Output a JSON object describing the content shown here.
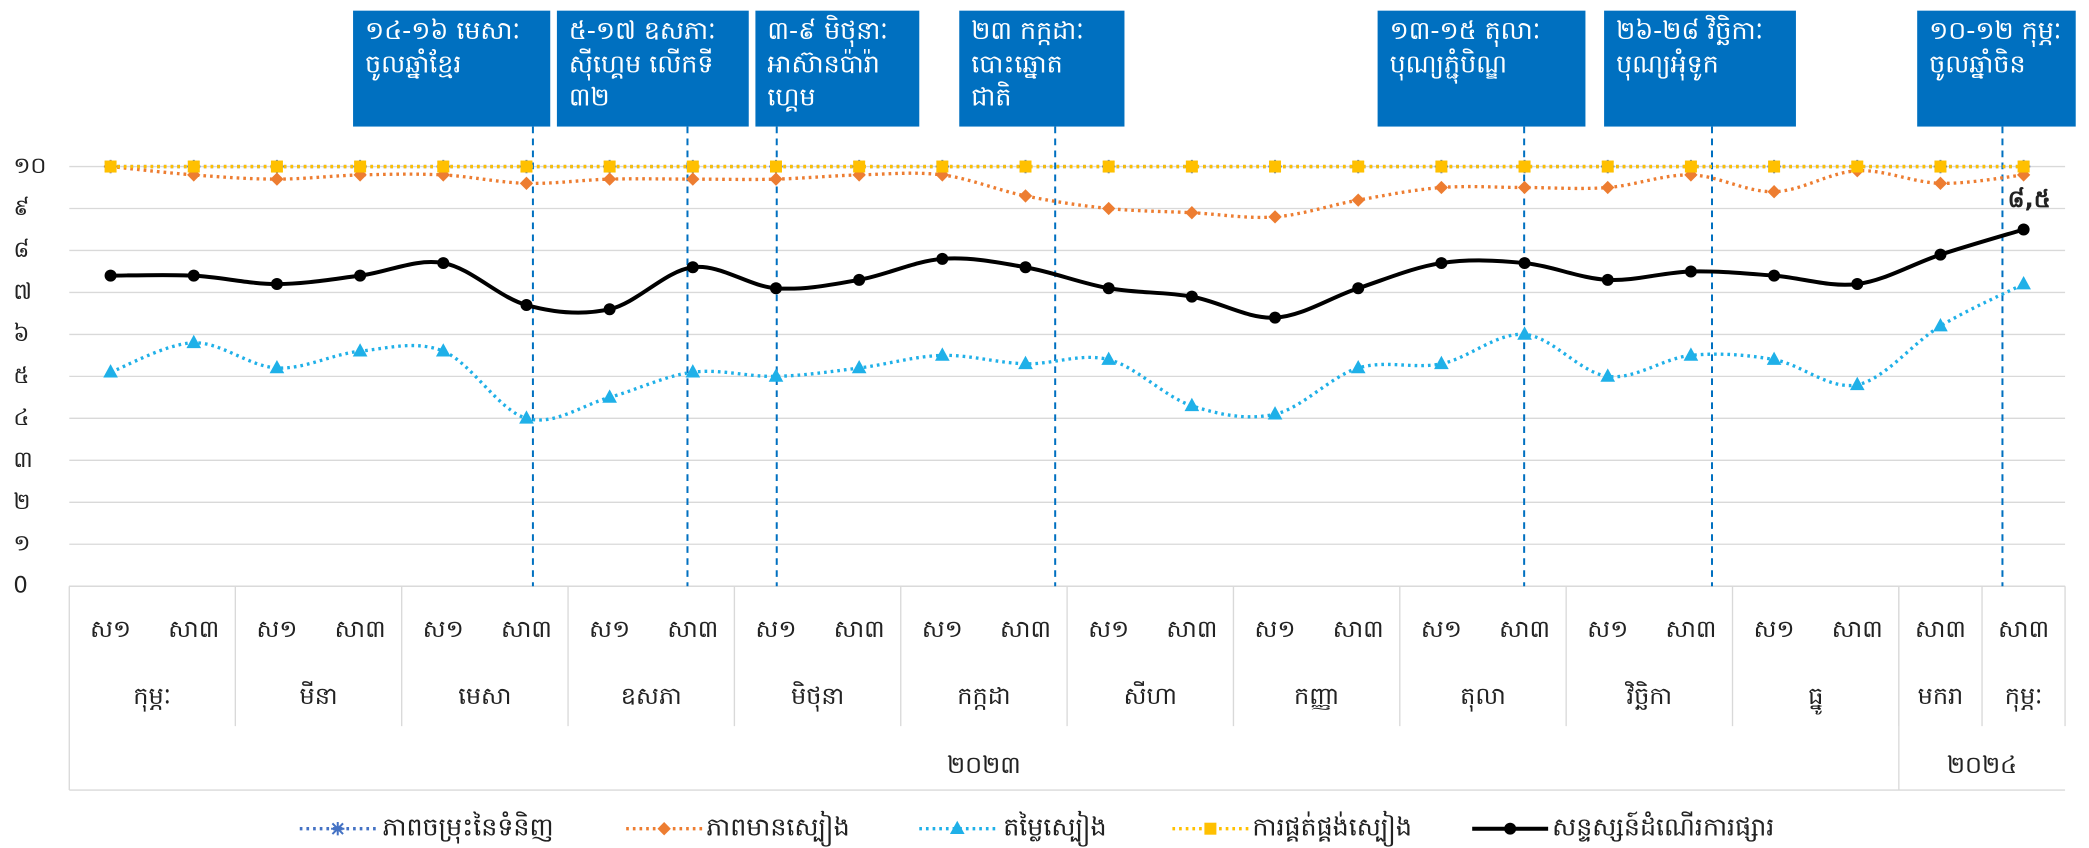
{
  "chart_data": {
    "type": "line",
    "categories": [
      "ស១",
      "សា៣",
      "ស១",
      "សា៣",
      "ស១",
      "សា៣",
      "ស១",
      "សា៣",
      "ស១",
      "សា៣",
      "ស១",
      "សា៣",
      "ស១",
      "សា៣",
      "ស១",
      "សា៣",
      "ស១",
      "សា៣",
      "ស១",
      "សា៣",
      "ស១",
      "សា៣",
      "សា៣",
      "សា៣"
    ],
    "month_labels": [
      "កុម្ភៈ",
      null,
      "មីនា",
      null,
      "មេសា",
      null,
      "ឧសភា",
      null,
      "មិថុនា",
      null,
      "កក្កដា",
      null,
      "សីហា",
      null,
      "កញ្ញា",
      null,
      "តុលា",
      null,
      "វិច្ឆិកា",
      null,
      "ធ្នូ",
      null,
      "មករា",
      "កុម្ភៈ"
    ],
    "year_labels": [
      "២០២៣",
      null,
      null,
      null,
      null,
      null,
      null,
      null,
      null,
      null,
      null,
      null,
      null,
      null,
      null,
      null,
      null,
      null,
      null,
      null,
      null,
      null,
      "២០២៤",
      null
    ],
    "ylim": [
      0,
      10
    ],
    "yticks": [
      0,
      {
        "value": 1,
        "label": "១"
      },
      {
        "value": 2,
        "label": "២"
      },
      {
        "value": 3,
        "label": "៣"
      },
      {
        "value": 4,
        "label": "៤"
      },
      {
        "value": 5,
        "label": "៥"
      },
      {
        "value": 6,
        "label": "៦"
      },
      {
        "value": 7,
        "label": "៧"
      },
      {
        "value": 8,
        "label": "៨"
      },
      {
        "value": 9,
        "label": "៩"
      },
      {
        "value": 10,
        "label": "១០"
      }
    ],
    "grid": true,
    "legend": "bottom",
    "series": [
      {
        "name": "ភាពចម្រុះនៃទំនិញ",
        "color": "#4472c4",
        "marker": "star",
        "dash": "dotted",
        "values": [
          10,
          10,
          10,
          10,
          10,
          10,
          10,
          10,
          10,
          10,
          10,
          10,
          10,
          10,
          10,
          10,
          10,
          10,
          10,
          10,
          10,
          10,
          10,
          10
        ]
      },
      {
        "name": "ភាពមានស្បៀង",
        "color": "#ed7d31",
        "marker": "diamond",
        "dash": "dotted",
        "values": [
          10.0,
          9.8,
          9.7,
          9.8,
          9.8,
          9.6,
          9.7,
          9.7,
          9.7,
          9.8,
          9.8,
          9.3,
          9.0,
          8.9,
          8.8,
          9.2,
          9.5,
          9.5,
          9.5,
          9.8,
          9.4,
          9.9,
          9.6,
          9.8
        ]
      },
      {
        "name": "តម្លៃស្បៀង",
        "color": "#1fb0e8",
        "marker": "triangle",
        "dash": "dotted",
        "values": [
          5.1,
          5.8,
          5.2,
          5.6,
          5.6,
          4.0,
          4.5,
          5.1,
          5.0,
          5.2,
          5.5,
          5.3,
          5.4,
          4.3,
          4.1,
          5.2,
          5.3,
          6.0,
          5.0,
          5.5,
          5.4,
          4.8,
          6.2,
          7.2
        ]
      },
      {
        "name": "ការផ្គត់ផ្គង់ស្បៀង",
        "color": "#ffc000",
        "marker": "square",
        "dash": "dotted",
        "values": [
          10,
          10,
          10,
          10,
          10,
          10,
          10,
          10,
          10,
          10,
          10,
          10,
          10,
          10,
          10,
          10,
          10,
          10,
          10,
          10,
          10,
          10,
          10,
          10
        ]
      },
      {
        "name": "សន្ទស្សន៍ដំណើរការផ្សារ",
        "color": "#000000",
        "marker": "circle",
        "dash": "solid",
        "values": [
          7.4,
          7.4,
          7.2,
          7.4,
          7.7,
          6.7,
          6.6,
          7.6,
          7.1,
          7.3,
          7.8,
          7.6,
          7.1,
          6.9,
          6.4,
          7.1,
          7.7,
          7.7,
          7.3,
          7.5,
          7.4,
          7.2,
          7.9,
          8.5
        ],
        "value_labels": [
          null,
          null,
          null,
          null,
          null,
          null,
          null,
          null,
          null,
          null,
          null,
          null,
          null,
          null,
          null,
          null,
          null,
          null,
          null,
          null,
          null,
          null,
          null,
          "៨,៥"
        ]
      }
    ],
    "annotations": [
      {
        "lines": [
          "១៤-១៦ មេសាៈ",
          "ចូលឆ្នាំខ្មែរ"
        ]
      },
      {
        "lines": [
          "៥-១៧ ឧសភាៈ",
          "ស៊ីហ្គេម លើកទី",
          "៣២"
        ]
      },
      {
        "lines": [
          "៣-៩ មិថុនាៈ",
          "អាស៊ានប៉ារ៉ា",
          "ហ្គេម"
        ]
      },
      {
        "lines": [
          "២៣ កក្កដាៈ",
          "បោះឆ្នោត",
          "ជាតិ"
        ]
      },
      {
        "lines": [
          "១៣-១៥ តុលាៈ",
          "បុណ្យភ្ជុំបិណ្ឌ"
        ]
      },
      {
        "lines": [
          "២៦-២៨ វិច្ឆិកាៈ",
          "បុណ្យអុំទូក"
        ]
      },
      {
        "lines": [
          "១០-១២ កុម្ភៈ",
          "ចូលឆ្នាំចិន"
        ]
      }
    ]
  }
}
